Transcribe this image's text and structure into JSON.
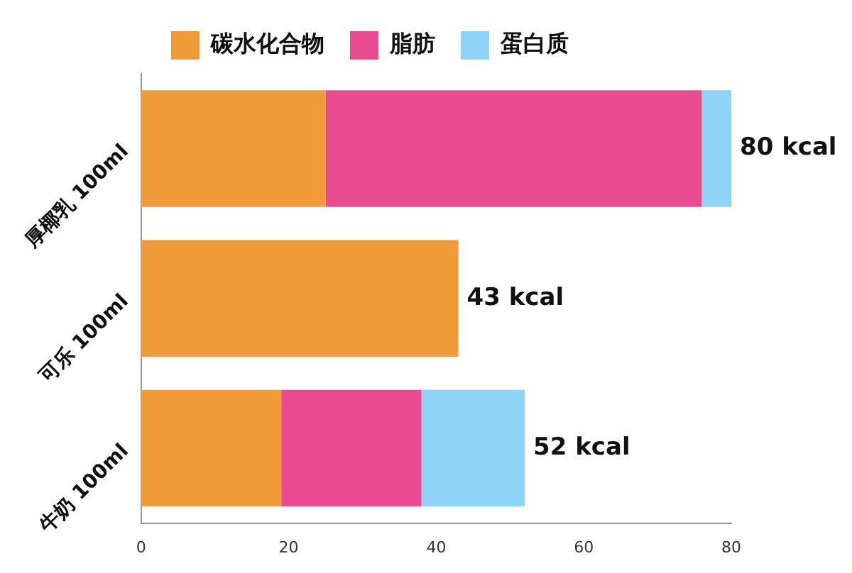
{
  "chart_data": {
    "type": "bar",
    "orientation": "horizontal",
    "stacked": true,
    "categories": [
      "厚椰乳 100ml",
      "可乐 100ml",
      "牛奶 100ml"
    ],
    "series": [
      {
        "name": "碳水化合物",
        "color": "#f19a38",
        "values": [
          25,
          43,
          19
        ]
      },
      {
        "name": "脂肪",
        "color": "#ea4a8f",
        "values": [
          51,
          null,
          19
        ]
      },
      {
        "name": "蛋白质",
        "color": "#8fd4f8",
        "values": [
          4,
          null,
          14
        ]
      }
    ],
    "xlim": [
      0,
      80
    ],
    "xticks": [
      0,
      20,
      40,
      60,
      80
    ],
    "totals": [
      "80 kcal",
      "43 kcal",
      "52 kcal"
    ],
    "grid": false,
    "legend": "top"
  }
}
